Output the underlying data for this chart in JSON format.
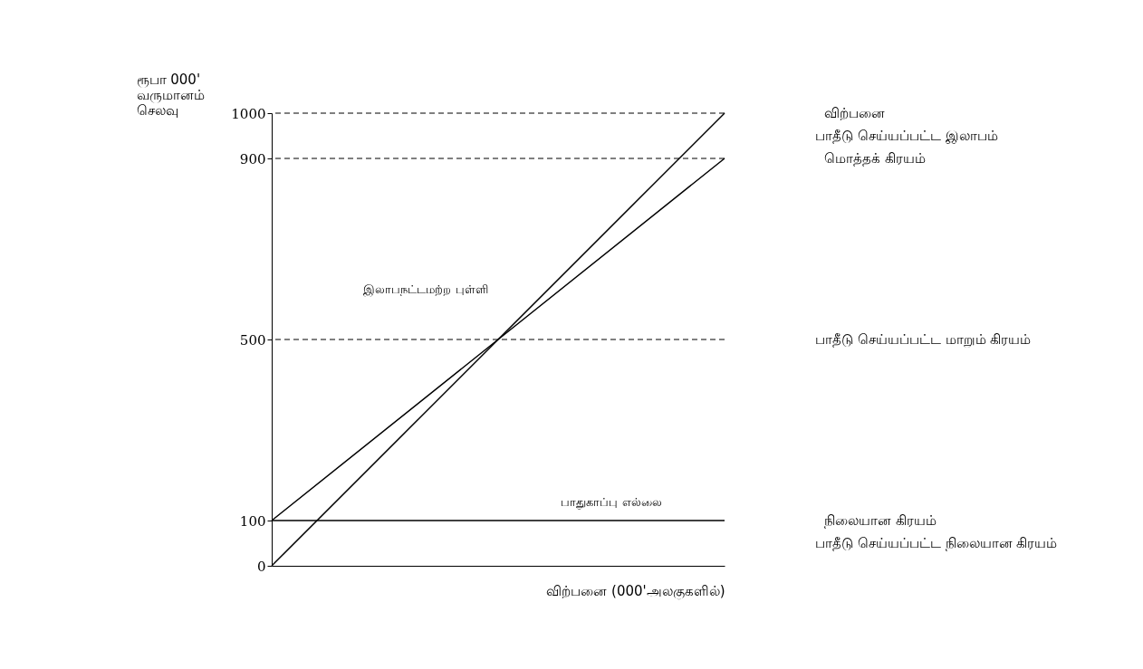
{
  "chart_data": {
    "type": "line",
    "xlabel": "விற்பனை (000'அலகுகளில்)",
    "ylabel": "ரூபா 000'\nவருமானம்\nசெலவு",
    "categories": [
      null,
      null,
      null
    ],
    "series": [
      {
        "name": "விற்பனை",
        "color": "#000000",
        "values": [
          0,
          500,
          1000
        ]
      },
      {
        "name": "மொத்தக் கிரயம்",
        "color": "#000000",
        "values": [
          100,
          500,
          900
        ]
      },
      {
        "name": "நிலையான கிரயம்",
        "color": "#000000",
        "values": [
          100,
          100,
          100
        ]
      }
    ],
    "ylim": [
      0,
      1000
    ],
    "yticks": [
      0,
      100,
      500,
      900,
      1000
    ],
    "ref_lines": [
      {
        "axis": "y",
        "value": 1000,
        "line_style": "dashed"
      },
      {
        "axis": "y",
        "value": 900,
        "line_style": "dashed"
      },
      {
        "axis": "y",
        "value": 500,
        "line_style": "dashed"
      }
    ],
    "annotations": [
      "இலாபநட்டமற்ற புள்ளி",
      "பாதீடு செய்யப்பட்ட இலாபம்",
      "பாதீடு செய்யப்பட்ட மாறும் கிரயம்",
      "பாதீடு செய்யப்பட்ட நிலையான கிரயம்",
      "பாதுகாப்பு எல்லை"
    ],
    "grid": false,
    "marker": "none",
    "line_style": "solid"
  }
}
